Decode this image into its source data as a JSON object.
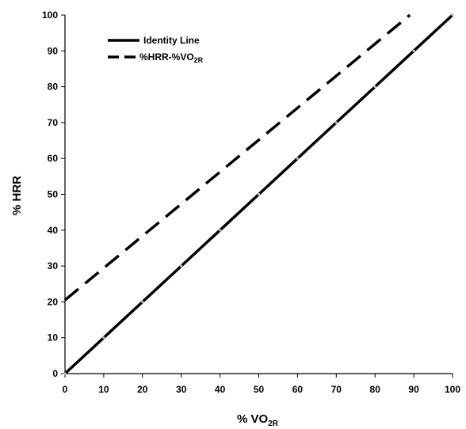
{
  "chart_data": {
    "type": "line",
    "xlabel": "% VO",
    "xlabel_sub": "2R",
    "ylabel": "% HRR",
    "xlim": [
      0,
      100
    ],
    "ylim": [
      0,
      100
    ],
    "xticks": [
      "0",
      "10",
      "20",
      "30",
      "40",
      "50",
      "60",
      "70",
      "80",
      "90",
      "100"
    ],
    "yticks": [
      "0",
      "10",
      "20",
      "30",
      "40",
      "50",
      "60",
      "70",
      "80",
      "90",
      "100"
    ],
    "grid": false,
    "legend_position": "top-left",
    "series": [
      {
        "name": "Identity Line",
        "style": "solid",
        "color": "#000000",
        "x": [
          0,
          10,
          20,
          30,
          40,
          50,
          60,
          70,
          80,
          90,
          100
        ],
        "y": [
          0,
          10,
          20,
          30,
          40,
          50,
          60,
          70,
          80,
          90,
          100
        ]
      },
      {
        "name": "%HRR-%VO",
        "name_sub": "2R",
        "style": "dashed",
        "color": "#000000",
        "x": [
          0,
          89
        ],
        "y": [
          20.5,
          100
        ]
      }
    ]
  }
}
